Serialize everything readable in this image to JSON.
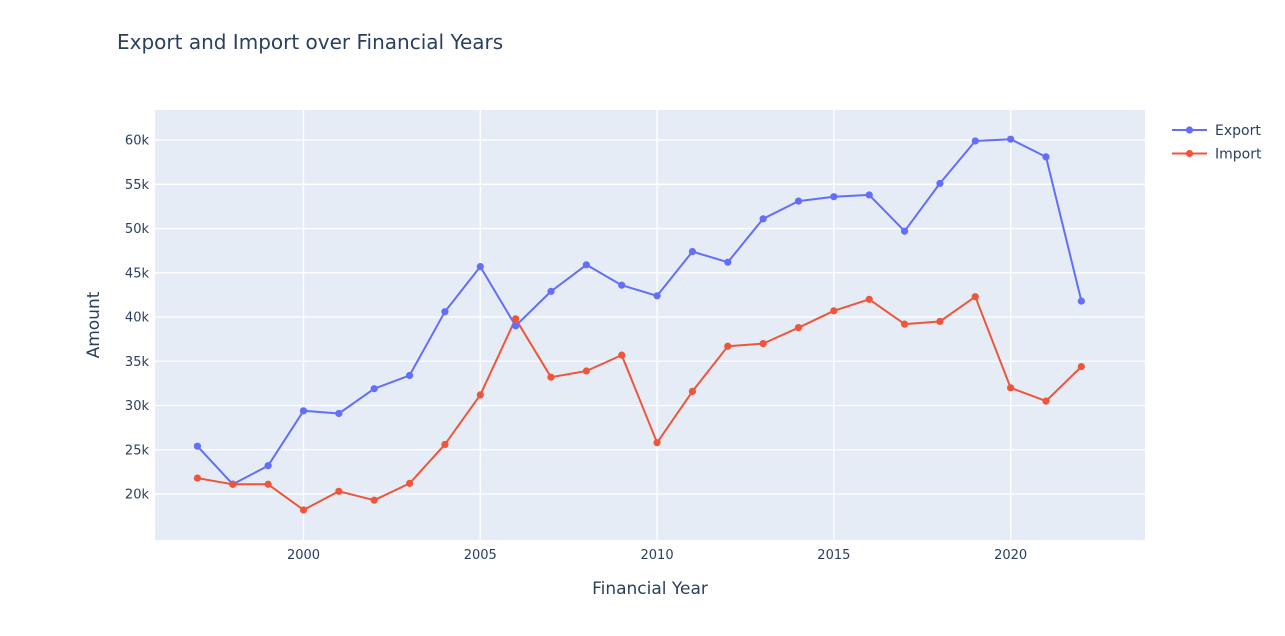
{
  "chart_data": {
    "type": "line",
    "title": "Export and Import over Financial Years",
    "xlabel": "Financial Year",
    "ylabel": "Amount",
    "xlim": [
      1995.8,
      2023.8
    ],
    "ylim": [
      14800,
      63400
    ],
    "x_ticks": [
      2000,
      2005,
      2010,
      2015,
      2020
    ],
    "x_tick_labels": [
      "2000",
      "2005",
      "2010",
      "2015",
      "2020"
    ],
    "y_ticks": [
      20000,
      25000,
      30000,
      35000,
      40000,
      45000,
      50000,
      55000,
      60000
    ],
    "y_tick_labels": [
      "20k",
      "25k",
      "30k",
      "35k",
      "40k",
      "45k",
      "50k",
      "55k",
      "60k"
    ],
    "grid": true,
    "legend_position": "top-right",
    "x": [
      1997,
      1998,
      1999,
      2000,
      2001,
      2002,
      2003,
      2004,
      2005,
      2006,
      2007,
      2008,
      2009,
      2010,
      2011,
      2012,
      2013,
      2014,
      2015,
      2016,
      2017,
      2018,
      2019,
      2020,
      2021,
      2022
    ],
    "series": [
      {
        "name": "Export",
        "color": "#636efa",
        "values": [
          25400,
          21100,
          23200,
          29400,
          29100,
          31900,
          33400,
          40600,
          45700,
          39000,
          42900,
          45900,
          43600,
          42400,
          47400,
          46200,
          51100,
          53100,
          53600,
          53800,
          49700,
          55100,
          59900,
          60100,
          58100,
          41800
        ]
      },
      {
        "name": "Import",
        "color": "#ef553b",
        "values": [
          21800,
          21100,
          21100,
          18200,
          20300,
          19300,
          21200,
          25600,
          31200,
          39800,
          33200,
          33900,
          35700,
          25800,
          31600,
          36700,
          37000,
          38800,
          40700,
          42000,
          39200,
          39500,
          42300,
          32000,
          30500,
          34400
        ]
      }
    ]
  }
}
